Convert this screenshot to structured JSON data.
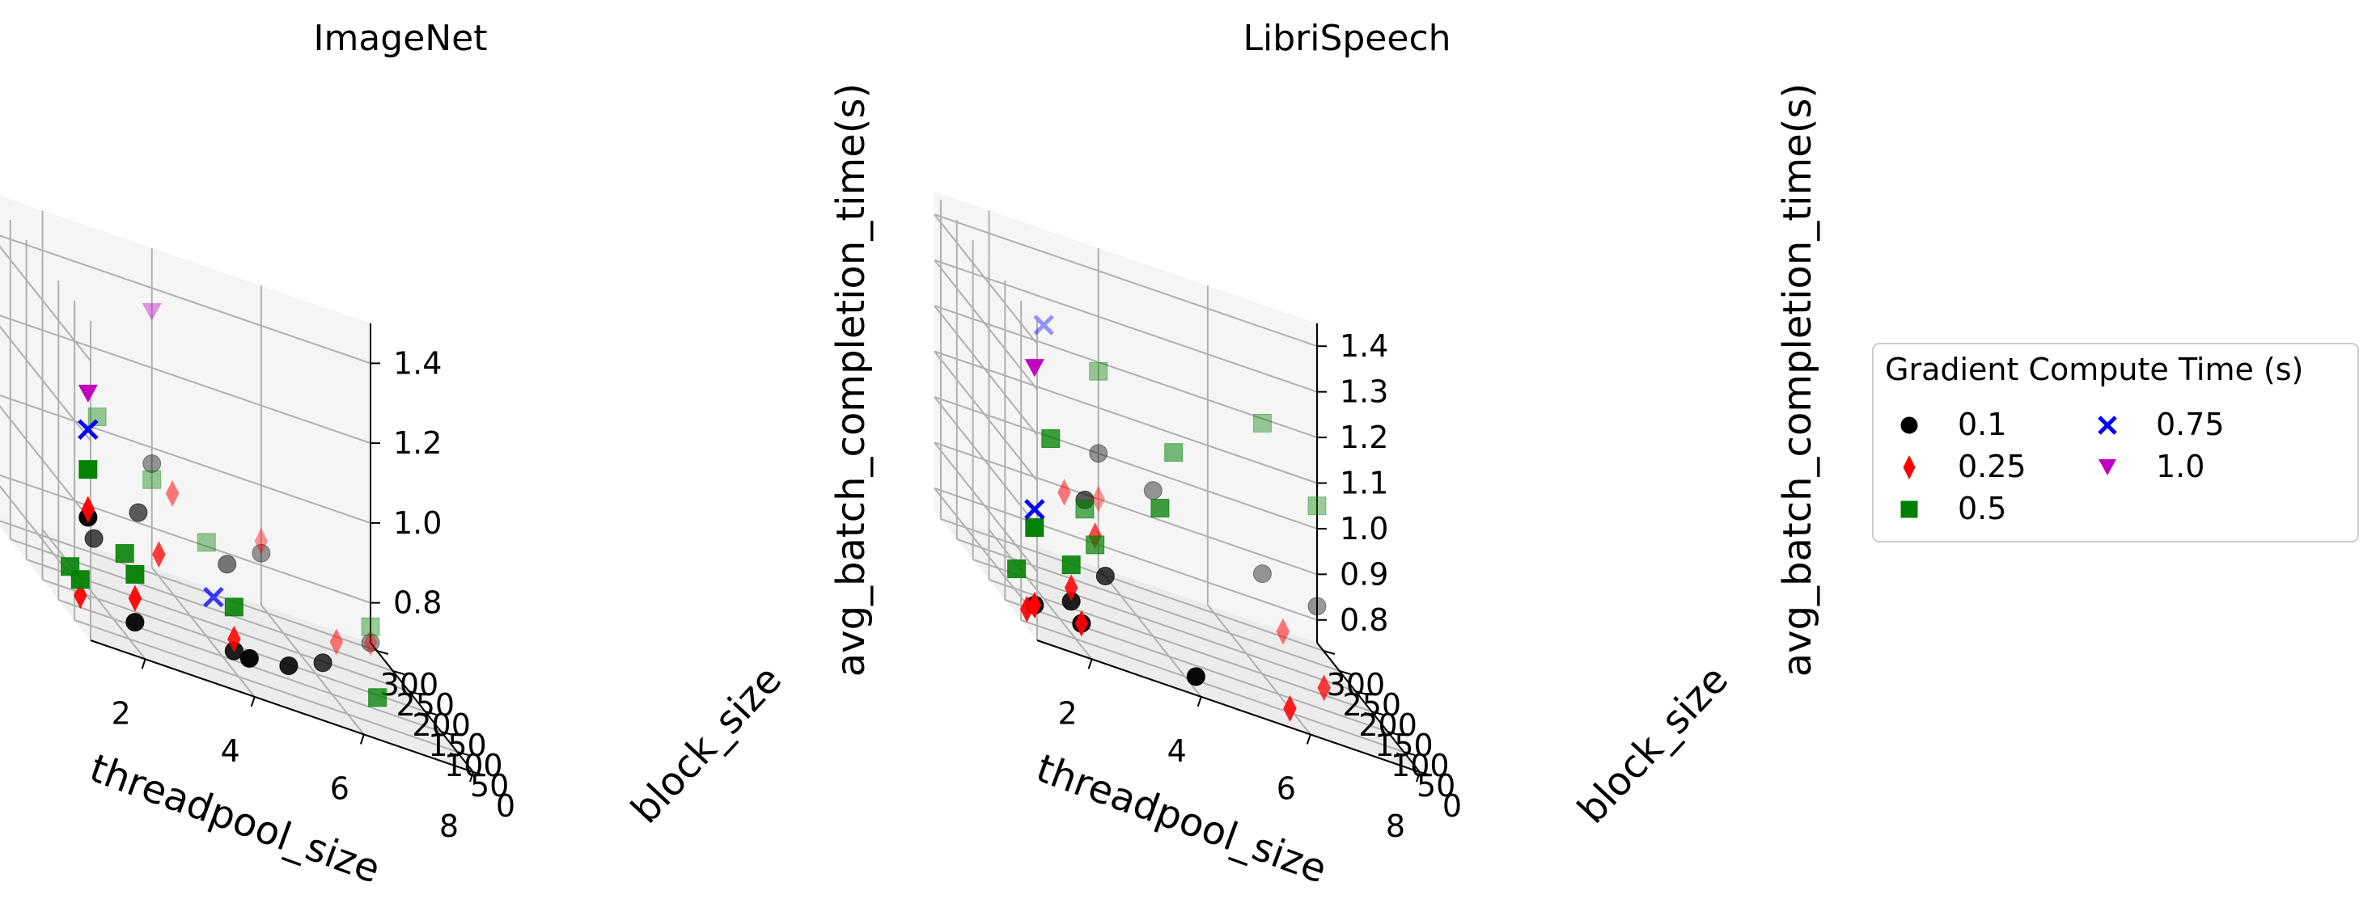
{
  "legend": {
    "title": "Gradient Compute Time (s)",
    "entries": [
      {
        "label": "0.1",
        "color": "#000000",
        "marker": "circle"
      },
      {
        "label": "0.25",
        "color": "#ff0000",
        "marker": "diamond"
      },
      {
        "label": "0.5",
        "color": "#008000",
        "marker": "square"
      },
      {
        "label": "0.75",
        "color": "#0000ff",
        "marker": "x"
      },
      {
        "label": "1.0",
        "color": "#bf00bf",
        "marker": "triangle-down"
      }
    ]
  },
  "chart_data": [
    {
      "type": "scatter",
      "title": "ImageNet",
      "xlabel": "threadpool_size",
      "ylabel": "block_size",
      "zlabel": "avg_batch_completion_time(s)",
      "x_ticks": [
        "2",
        "4",
        "6",
        "8"
      ],
      "y_ticks": [
        "0",
        "50",
        "100",
        "150",
        "200",
        "250",
        "300"
      ],
      "z_ticks": [
        "0.8",
        "1.0",
        "1.2",
        "1.4"
      ],
      "xlim": [
        1,
        8
      ],
      "ylim": [
        0,
        320
      ],
      "zlim": [
        0.7,
        1.5
      ],
      "series": [
        {
          "name": "0.1",
          "color": "#000000",
          "marker": "circle",
          "points": [
            [
              1,
              8,
              1.0
            ],
            [
              2,
              32,
              0.76
            ],
            [
              4,
              16,
              0.78
            ],
            [
              4,
              64,
              0.75
            ],
            [
              5,
              64,
              0.76
            ],
            [
              6,
              128,
              0.75
            ],
            [
              4,
              320,
              0.96
            ],
            [
              8,
              320,
              0.7
            ],
            [
              2,
              160,
              0.84
            ],
            [
              3,
              192,
              0.92
            ],
            [
              5,
              256,
              0.82
            ],
            [
              6,
              320,
              0.83
            ]
          ]
        },
        {
          "name": "0.25",
          "color": "#ff0000",
          "marker": "diamond",
          "points": [
            [
              1,
              8,
              1.02
            ],
            [
              1,
              32,
              0.78
            ],
            [
              2,
              32,
              0.82
            ],
            [
              4,
              64,
              0.78
            ],
            [
              7,
              256,
              0.72
            ],
            [
              8,
              320,
              0.7
            ],
            [
              4,
              256,
              0.95
            ],
            [
              6,
              320,
              0.86
            ],
            [
              3,
              128,
              0.88
            ]
          ]
        },
        {
          "name": "0.5",
          "color": "#008000",
          "marker": "square",
          "points": [
            [
              1,
              8,
              1.12
            ],
            [
              1,
              32,
              0.82
            ],
            [
              1,
              64,
              0.82
            ],
            [
              2,
              32,
              0.88
            ],
            [
              2,
              64,
              0.9
            ],
            [
              4,
              64,
              0.86
            ],
            [
              7,
              128,
              0.71
            ],
            [
              8,
              320,
              0.74
            ],
            [
              3,
              320,
              1.03
            ],
            [
              4,
              320,
              0.92
            ],
            [
              5,
              320,
              0.81
            ]
          ]
        },
        {
          "name": "0.75",
          "color": "#0000ff",
          "marker": "x",
          "points": [
            [
              1,
              8,
              1.22
            ],
            [
              4,
              128,
              0.82
            ]
          ]
        },
        {
          "name": "1.0",
          "color": "#bf00bf",
          "marker": "triangle-down",
          "points": [
            [
              1,
              8,
              1.31
            ],
            [
              4,
              320,
              1.34
            ]
          ]
        }
      ]
    },
    {
      "type": "scatter",
      "title": "LibriSpeech",
      "xlabel": "threadpool_size",
      "ylabel": "block_size",
      "zlabel": "avg_batch_completion_time(s)",
      "x_ticks": [
        "2",
        "4",
        "6",
        "8"
      ],
      "y_ticks": [
        "0",
        "50",
        "100",
        "150",
        "200",
        "250",
        "300"
      ],
      "z_ticks": [
        "0.8",
        "0.9",
        "1.0",
        "1.1",
        "1.2",
        "1.3",
        "1.4"
      ],
      "xlim": [
        1,
        8
      ],
      "ylim": [
        0,
        320
      ],
      "zlim": [
        0.75,
        1.45
      ],
      "series": [
        {
          "name": "0.1",
          "color": "#000000",
          "marker": "circle",
          "points": [
            [
              1,
              8,
              0.82
            ],
            [
              2,
              32,
              0.8
            ],
            [
              2,
              64,
              0.82
            ],
            [
              4,
              16,
              0.78
            ],
            [
              8,
              320,
              0.83
            ],
            [
              7,
              320,
              0.86
            ],
            [
              3,
              192,
              0.97
            ],
            [
              4,
              320,
              1.0
            ],
            [
              5,
              320,
              0.96
            ],
            [
              3,
              128,
              0.86
            ]
          ]
        },
        {
          "name": "0.25",
          "color": "#ff0000",
          "marker": "diamond",
          "points": [
            [
              1,
              8,
              0.82
            ],
            [
              1,
              32,
              0.79
            ],
            [
              2,
              32,
              0.8
            ],
            [
              2,
              64,
              0.85
            ],
            [
              6,
              64,
              0.75
            ],
            [
              7,
              128,
              0.78
            ],
            [
              7,
              256,
              0.79
            ],
            [
              3,
              256,
              0.93
            ],
            [
              4,
              320,
              0.9
            ],
            [
              3,
              160,
              0.92
            ]
          ]
        },
        {
          "name": "0.5",
          "color": "#008000",
          "marker": "square",
          "points": [
            [
              1,
              8,
              0.99
            ],
            [
              1,
              64,
              0.85
            ],
            [
              2,
              64,
              0.9
            ],
            [
              3,
              160,
              0.9
            ],
            [
              3,
              192,
              0.95
            ],
            [
              4,
              128,
              1.05
            ],
            [
              5,
              256,
              1.1
            ],
            [
              7,
              320,
              1.19
            ],
            [
              8,
              320,
              1.05
            ],
            [
              2,
              128,
              1.12
            ],
            [
              4,
              320,
              1.18
            ]
          ]
        },
        {
          "name": "0.75",
          "color": "#0000ff",
          "marker": "x",
          "points": [
            [
              1,
              8,
              1.03
            ],
            [
              3,
              320,
              1.24
            ]
          ]
        },
        {
          "name": "1.0",
          "color": "#bf00bf",
          "marker": "triangle-down",
          "points": [
            [
              1,
              8,
              1.34
            ]
          ]
        }
      ]
    }
  ]
}
